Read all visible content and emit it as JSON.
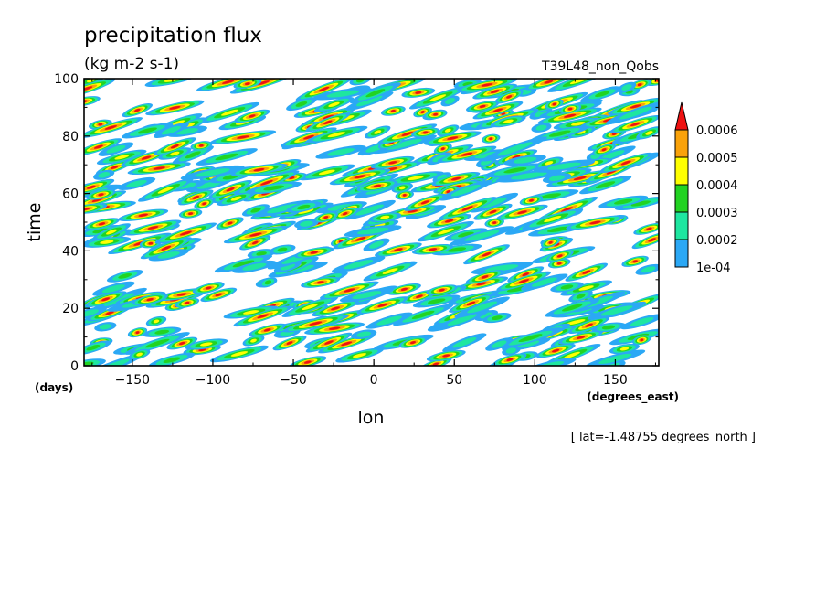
{
  "chart_data": {
    "type": "heatmap",
    "title": "precipitation flux",
    "units": "(kg m-2 s-1)",
    "subtitle": "T39L48_non_Qobs",
    "xlabel": "lon",
    "xunit": "(degrees_east)",
    "ylabel": "time",
    "yunit": "(days)",
    "annotation": "[ lat=-1.48755 degrees_north ]",
    "xlim": [
      -180,
      177
    ],
    "ylim": [
      0,
      100
    ],
    "xticks": [
      -150,
      -100,
      -50,
      0,
      50,
      100,
      150
    ],
    "xtick_labels": [
      "−150",
      "−100",
      "−50",
      "0",
      "50",
      "100",
      "150"
    ],
    "yticks": [
      0,
      20,
      40,
      60,
      80,
      100
    ],
    "ytick_labels": [
      "0",
      "20",
      "40",
      "60",
      "80",
      "100"
    ],
    "levels": [
      0.0001,
      0.0002,
      0.0003,
      0.0004,
      0.0005,
      0.0006
    ],
    "level_labels": [
      "1e-04",
      "0.0002",
      "0.0003",
      "0.0004",
      "0.0005",
      "0.0006"
    ],
    "colors": [
      "#2ba8f5",
      "#1ee6a0",
      "#22d322",
      "#ffff00",
      "#f9a20a",
      "#ee1111"
    ],
    "below_color": "#ffffff",
    "data_description_seed": 7
  }
}
